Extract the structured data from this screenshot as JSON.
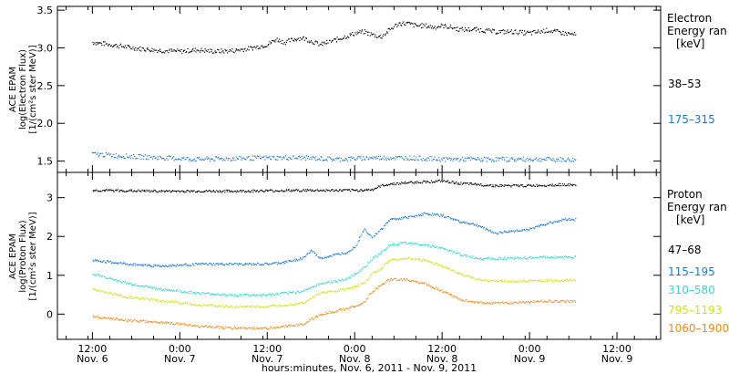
{
  "chart_data": [
    {
      "type": "scatter",
      "panel": "electron",
      "ylabel_lines": [
        "ACE EPAM",
        "log(Electron Flux)",
        "[1/(cm²s ster MeV)]"
      ],
      "ylim": [
        1.35,
        3.55
      ],
      "yticks": [
        1.5,
        2.0,
        2.5,
        3.0,
        3.5
      ],
      "ytick_labels": [
        "1.5",
        "2.0",
        "2.5",
        "3.0",
        "3.5"
      ],
      "legend_title_lines": [
        "Electron",
        "Energy ran",
        "[keV]"
      ],
      "series": [
        {
          "name": "38–53",
          "color": "#000000",
          "x": [
            0.0,
            0.1,
            0.25,
            0.4,
            0.5,
            0.6,
            0.7,
            0.8,
            0.9,
            1.0,
            1.05,
            1.1,
            1.15,
            1.2,
            1.3,
            1.4,
            1.45,
            1.5,
            1.55,
            1.6,
            1.65,
            1.7,
            1.75,
            1.8,
            1.85,
            1.9,
            1.95,
            2.0,
            2.05,
            2.1,
            2.2,
            2.3,
            2.4,
            2.5,
            2.6,
            2.7,
            2.76
          ],
          "y": [
            3.08,
            3.05,
            3.0,
            2.97,
            2.96,
            2.98,
            2.96,
            2.97,
            3.0,
            3.05,
            3.12,
            3.08,
            3.12,
            3.14,
            3.05,
            3.12,
            3.16,
            3.2,
            3.22,
            3.18,
            3.15,
            3.25,
            3.33,
            3.33,
            3.3,
            3.3,
            3.28,
            3.3,
            3.28,
            3.25,
            3.25,
            3.22,
            3.22,
            3.2,
            3.24,
            3.2,
            3.18
          ]
        },
        {
          "name": "175–315",
          "color": "#1f77d2",
          "x": [
            0.0,
            0.2,
            0.4,
            0.6,
            0.8,
            1.0,
            1.2,
            1.4,
            1.6,
            1.8,
            2.0,
            2.2,
            2.4,
            2.6,
            2.76
          ],
          "y": [
            1.6,
            1.57,
            1.55,
            1.53,
            1.54,
            1.55,
            1.55,
            1.53,
            1.55,
            1.55,
            1.53,
            1.53,
            1.53,
            1.53,
            1.52
          ]
        }
      ]
    },
    {
      "type": "scatter",
      "panel": "proton",
      "ylabel_lines": [
        "ACE EPAM",
        "log(Proton Flux)",
        "[1/(cm²s ster MeV)]"
      ],
      "ylim": [
        -0.65,
        3.65
      ],
      "yticks": [
        0,
        1,
        2,
        3
      ],
      "ytick_labels": [
        "0",
        "1",
        "2",
        "3"
      ],
      "legend_title_lines": [
        "Proton",
        "Energy ran",
        "[keV]"
      ],
      "series": [
        {
          "name": "47–68",
          "color": "#000000",
          "x": [
            0.0,
            0.4,
            0.8,
            1.2,
            1.5,
            1.6,
            1.65,
            1.7,
            1.8,
            2.0,
            2.1,
            2.3,
            2.5,
            2.7,
            2.76
          ],
          "y": [
            3.2,
            3.18,
            3.18,
            3.2,
            3.2,
            3.22,
            3.32,
            3.36,
            3.4,
            3.44,
            3.38,
            3.32,
            3.32,
            3.35,
            3.33
          ]
        },
        {
          "name": "115–195",
          "color": "#1f77d2",
          "x": [
            0.0,
            0.2,
            0.4,
            0.6,
            0.8,
            1.0,
            1.1,
            1.2,
            1.25,
            1.3,
            1.45,
            1.5,
            1.55,
            1.6,
            1.65,
            1.7,
            1.8,
            1.9,
            2.0,
            2.1,
            2.2,
            2.3,
            2.4,
            2.5,
            2.6,
            2.7,
            2.76
          ],
          "y": [
            1.4,
            1.3,
            1.25,
            1.3,
            1.3,
            1.3,
            1.35,
            1.45,
            1.65,
            1.45,
            1.6,
            1.75,
            2.2,
            2.0,
            2.2,
            2.45,
            2.5,
            2.6,
            2.55,
            2.4,
            2.3,
            2.1,
            2.15,
            2.2,
            2.35,
            2.45,
            2.45
          ]
        },
        {
          "name": "310–580",
          "color": "#35d6c8",
          "x": [
            0.0,
            0.2,
            0.4,
            0.6,
            0.8,
            1.0,
            1.2,
            1.3,
            1.45,
            1.55,
            1.6,
            1.65,
            1.7,
            1.8,
            1.9,
            2.0,
            2.1,
            2.2,
            2.4,
            2.6,
            2.76
          ],
          "y": [
            1.05,
            0.8,
            0.65,
            0.55,
            0.5,
            0.5,
            0.6,
            0.8,
            0.9,
            1.2,
            1.45,
            1.6,
            1.8,
            1.85,
            1.8,
            1.7,
            1.55,
            1.45,
            1.45,
            1.48,
            1.48
          ]
        },
        {
          "name": "795–1193",
          "color": "#cde01a",
          "x": [
            0.0,
            0.2,
            0.4,
            0.6,
            0.8,
            1.0,
            1.2,
            1.3,
            1.45,
            1.55,
            1.6,
            1.65,
            1.7,
            1.8,
            1.9,
            2.0,
            2.1,
            2.2,
            2.4,
            2.6,
            2.76
          ],
          "y": [
            0.65,
            0.45,
            0.35,
            0.25,
            0.2,
            0.2,
            0.3,
            0.55,
            0.65,
            0.8,
            1.05,
            1.2,
            1.4,
            1.45,
            1.4,
            1.25,
            1.05,
            0.9,
            0.85,
            0.88,
            0.88
          ]
        },
        {
          "name": "1060–1900",
          "color": "#f08a1a",
          "x": [
            0.0,
            0.2,
            0.4,
            0.6,
            0.8,
            1.0,
            1.2,
            1.3,
            1.45,
            1.55,
            1.6,
            1.65,
            1.7,
            1.8,
            1.9,
            2.0,
            2.1,
            2.2,
            2.4,
            2.6,
            2.76
          ],
          "y": [
            -0.05,
            -0.15,
            -0.2,
            -0.3,
            -0.35,
            -0.35,
            -0.25,
            0.0,
            0.15,
            0.3,
            0.6,
            0.75,
            0.9,
            0.9,
            0.8,
            0.6,
            0.4,
            0.3,
            0.3,
            0.35,
            0.33
          ]
        }
      ]
    }
  ],
  "x_axis": {
    "xlim": [
      -0.2,
      3.25
    ],
    "tick_values": [
      0,
      0.5,
      1.0,
      1.5,
      2.0,
      2.5,
      3.0
    ],
    "ticks": [
      {
        "time": "12:00",
        "date": "Nov. 6"
      },
      {
        "time": "0:00",
        "date": "Nov. 7"
      },
      {
        "time": "12:00",
        "date": "Nov. 7"
      },
      {
        "time": "0:00",
        "date": "Nov. 8"
      },
      {
        "time": "12:00",
        "date": "Nov. 8"
      },
      {
        "time": "0:00",
        "date": "Nov. 9"
      },
      {
        "time": "12:00",
        "date": "Nov. 9"
      }
    ],
    "xlabel": "hours:minutes, Nov.  6, 2011 - Nov.  9, 2011"
  }
}
